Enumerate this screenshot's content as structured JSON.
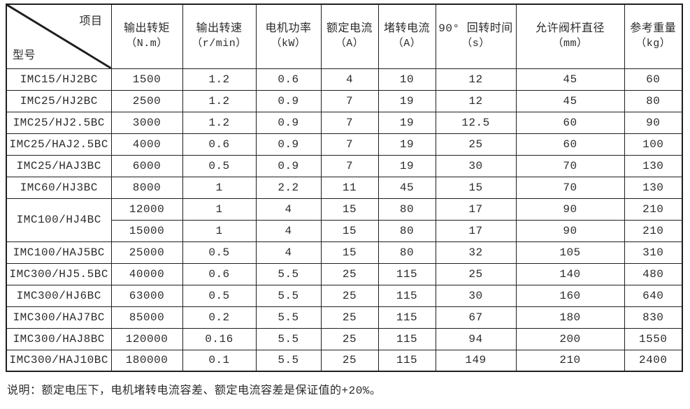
{
  "table": {
    "corner_top": "项目",
    "corner_bottom": "型号",
    "columns": [
      {
        "name": "输出转矩",
        "unit": "（N.m）"
      },
      {
        "name": "输出转速",
        "unit": "（r/min）"
      },
      {
        "name": "电机功率",
        "unit": "（kW）"
      },
      {
        "name": "额定电流",
        "unit": "（A）"
      },
      {
        "name": "堵转电流",
        "unit": "（A）"
      },
      {
        "name": "90° 回转时间",
        "unit": "（s）"
      },
      {
        "name": "允许阀杆直径",
        "unit": "（mm）"
      },
      {
        "name": "参考重量",
        "unit": "（kg）"
      }
    ],
    "rows": [
      {
        "model": "IMC15/HJ2BC",
        "values": [
          "1500",
          "1.2",
          "0.6",
          "4",
          "10",
          "12",
          "45",
          "60"
        ]
      },
      {
        "model": "IMC25/HJ2BC",
        "values": [
          "2500",
          "1.2",
          "0.9",
          "7",
          "19",
          "12",
          "45",
          "80"
        ]
      },
      {
        "model": "IMC25/HJ2.5BC",
        "values": [
          "3000",
          "1.2",
          "0.9",
          "7",
          "19",
          "12.5",
          "60",
          "90"
        ]
      },
      {
        "model": "IMC25/HAJ2.5BC",
        "values": [
          "4000",
          "0.6",
          "0.9",
          "7",
          "19",
          "25",
          "60",
          "100"
        ]
      },
      {
        "model": "IMC25/HAJ3BC",
        "values": [
          "6000",
          "0.5",
          "0.9",
          "7",
          "19",
          "30",
          "70",
          "130"
        ]
      },
      {
        "model": "IMC60/HJ3BC",
        "values": [
          "8000",
          "1",
          "2.2",
          "11",
          "45",
          "15",
          "70",
          "130"
        ]
      },
      {
        "model": "IMC100/HJ4BC",
        "rowspan": 2,
        "values": [
          "12000",
          "1",
          "4",
          "15",
          "80",
          "17",
          "90",
          "210"
        ]
      },
      {
        "model": null,
        "values": [
          "15000",
          "1",
          "4",
          "15",
          "80",
          "17",
          "90",
          "210"
        ]
      },
      {
        "model": "IMC100/HAJ5BC",
        "values": [
          "25000",
          "0.5",
          "4",
          "15",
          "80",
          "32",
          "105",
          "310"
        ]
      },
      {
        "model": "IMC300/HJ5.5BC",
        "values": [
          "40000",
          "0.6",
          "5.5",
          "25",
          "115",
          "25",
          "140",
          "480"
        ]
      },
      {
        "model": "IMC300/HJ6BC",
        "values": [
          "63000",
          "0.5",
          "5.5",
          "25",
          "115",
          "30",
          "160",
          "640"
        ]
      },
      {
        "model": "IMC300/HAJ7BC",
        "values": [
          "85000",
          "0.2",
          "5.5",
          "25",
          "115",
          "67",
          "180",
          "830"
        ]
      },
      {
        "model": "IMC300/HAJ8BC",
        "values": [
          "120000",
          "0.16",
          "5.5",
          "25",
          "115",
          "94",
          "200",
          "1550"
        ]
      },
      {
        "model": "IMC300/HAJ10BC",
        "values": [
          "180000",
          "0.1",
          "5.5",
          "25",
          "115",
          "149",
          "210",
          "2400"
        ]
      }
    ]
  },
  "note": "说明：额定电压下，电机堵转电流容差、额定电流容差是保证值的+20%。",
  "colors": {
    "border": "#1f1f1f",
    "text": "#2b2b2b",
    "background": "#ffffff"
  }
}
